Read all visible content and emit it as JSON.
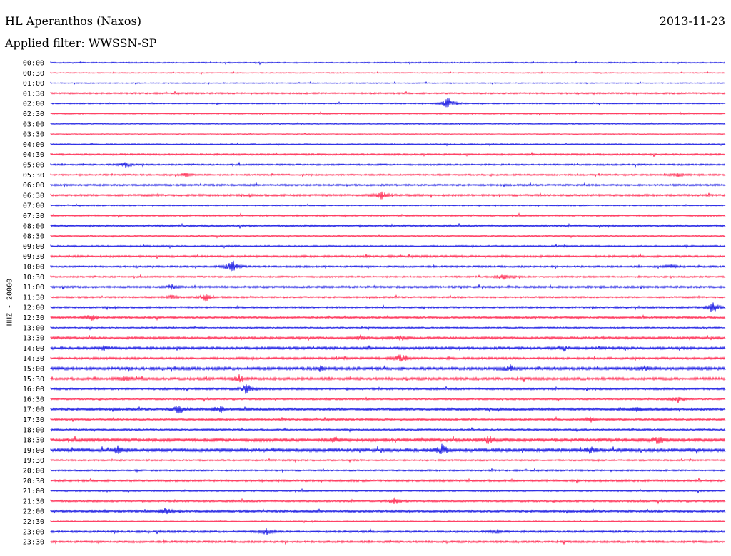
{
  "header": {
    "station": "HL Aperanthos (Naxos)",
    "date": "2013-11-23",
    "filter": "Applied filter: WWSSN-SP",
    "channel_label": "HHZ - 20000"
  },
  "colors": {
    "even": "#0000e0",
    "odd": "#ff1440"
  },
  "chart_data": {
    "type": "line",
    "title": "HL Aperanthos (Naxos)",
    "subtitle": "Applied filter: WWSSN-SP",
    "ylabel": "HHZ - 20000",
    "xlabel": "",
    "grid": false,
    "legend": "none",
    "row_labels": [
      "00:00",
      "00:30",
      "01:00",
      "01:30",
      "02:00",
      "02:30",
      "03:00",
      "03:30",
      "04:00",
      "04:30",
      "05:00",
      "05:30",
      "06:00",
      "06:30",
      "07:00",
      "07:30",
      "08:00",
      "08:30",
      "09:00",
      "09:30",
      "10:00",
      "10:30",
      "11:00",
      "11:30",
      "12:00",
      "12:30",
      "13:00",
      "13:30",
      "14:00",
      "14:30",
      "15:00",
      "15:30",
      "16:00",
      "16:30",
      "17:00",
      "17:30",
      "18:00",
      "18:30",
      "19:00",
      "19:30",
      "20:00",
      "20:30",
      "21:00",
      "21:30",
      "22:00",
      "22:30",
      "23:00",
      "23:30"
    ],
    "row_noise": [
      0.6,
      0.5,
      0.5,
      0.8,
      0.6,
      0.6,
      0.5,
      0.4,
      0.6,
      0.9,
      0.8,
      0.8,
      0.9,
      1.0,
      0.6,
      0.8,
      1.0,
      0.7,
      0.8,
      1.0,
      0.9,
      0.8,
      1.0,
      0.8,
      0.9,
      1.0,
      0.7,
      1.1,
      1.2,
      1.1,
      1.4,
      1.3,
      1.0,
      0.8,
      1.2,
      1.0,
      0.9,
      1.5,
      1.6,
      0.8,
      0.8,
      1.0,
      0.7,
      0.9,
      1.1,
      0.6,
      1.0,
      1.0
    ],
    "events": [
      {
        "row": 4,
        "x": 0.59,
        "amp": 10
      },
      {
        "row": 10,
        "x": 0.11,
        "amp": 4
      },
      {
        "row": 13,
        "x": 0.49,
        "amp": 7
      },
      {
        "row": 11,
        "x": 0.2,
        "amp": 3
      },
      {
        "row": 11,
        "x": 0.93,
        "amp": 4
      },
      {
        "row": 20,
        "x": 0.27,
        "amp": 12
      },
      {
        "row": 20,
        "x": 0.92,
        "amp": 3
      },
      {
        "row": 21,
        "x": 0.67,
        "amp": 5
      },
      {
        "row": 22,
        "x": 0.18,
        "amp": 4
      },
      {
        "row": 23,
        "x": 0.18,
        "amp": 4
      },
      {
        "row": 23,
        "x": 0.23,
        "amp": 6
      },
      {
        "row": 24,
        "x": 0.98,
        "amp": 10
      },
      {
        "row": 25,
        "x": 0.06,
        "amp": 5
      },
      {
        "row": 27,
        "x": 0.46,
        "amp": 4
      },
      {
        "row": 27,
        "x": 0.52,
        "amp": 4
      },
      {
        "row": 28,
        "x": 0.76,
        "amp": 4
      },
      {
        "row": 28,
        "x": 0.08,
        "amp": 3
      },
      {
        "row": 29,
        "x": 0.52,
        "amp": 9
      },
      {
        "row": 30,
        "x": 0.4,
        "amp": 5
      },
      {
        "row": 30,
        "x": 0.68,
        "amp": 6
      },
      {
        "row": 30,
        "x": 0.88,
        "amp": 4
      },
      {
        "row": 31,
        "x": 0.11,
        "amp": 4
      },
      {
        "row": 31,
        "x": 0.28,
        "amp": 6
      },
      {
        "row": 32,
        "x": 0.29,
        "amp": 8
      },
      {
        "row": 33,
        "x": 0.93,
        "amp": 6
      },
      {
        "row": 34,
        "x": 0.19,
        "amp": 8
      },
      {
        "row": 34,
        "x": 0.25,
        "amp": 6
      },
      {
        "row": 34,
        "x": 0.87,
        "amp": 4
      },
      {
        "row": 35,
        "x": 0.8,
        "amp": 4
      },
      {
        "row": 37,
        "x": 0.42,
        "amp": 5
      },
      {
        "row": 37,
        "x": 0.65,
        "amp": 6
      },
      {
        "row": 37,
        "x": 0.9,
        "amp": 6
      },
      {
        "row": 38,
        "x": 0.1,
        "amp": 6
      },
      {
        "row": 38,
        "x": 0.58,
        "amp": 9
      },
      {
        "row": 38,
        "x": 0.8,
        "amp": 5
      },
      {
        "row": 43,
        "x": 0.51,
        "amp": 5
      },
      {
        "row": 44,
        "x": 0.17,
        "amp": 5
      },
      {
        "row": 46,
        "x": 0.32,
        "amp": 5
      },
      {
        "row": 46,
        "x": 0.66,
        "amp": 4
      }
    ]
  }
}
